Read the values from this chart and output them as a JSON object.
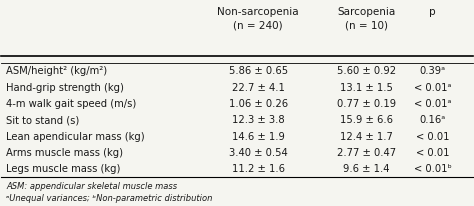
{
  "col_headers": [
    "Non-sarcopenia\n(n = 240)",
    "Sarcopenia\n(n = 10)",
    "p"
  ],
  "row_labels": [
    "ASM/height² (kg/m²)",
    "Hand-grip strength (kg)",
    "4-m walk gait speed (m/s)",
    "Sit to stand (s)",
    "Lean apendicular mass (kg)",
    "Arms muscle mass (kg)",
    "Legs muscle mass (kg)"
  ],
  "col1_vals": [
    "5.86 ± 0.65",
    "22.7 ± 4.1",
    "1.06 ± 0.26",
    "12.3 ± 3.8",
    "14.6 ± 1.9",
    "3.40 ± 0.54",
    "11.2 ± 1.6"
  ],
  "col2_vals": [
    "5.60 ± 0.92",
    "13.1 ± 1.5",
    "0.77 ± 0.19",
    "15.9 ± 6.6",
    "12.4 ± 1.7",
    "2.77 ± 0.47",
    "9.6 ± 1.4"
  ],
  "col3_vals": [
    "0.39ᵃ",
    "< 0.01ᵃ",
    "< 0.01ᵃ",
    "0.16ᵃ",
    "< 0.01",
    "< 0.01",
    "< 0.01ᵇ"
  ],
  "footnote1": "ASM: appendicular skeletal muscle mass",
  "footnote2": "ᵃUnequal variances; ᵇNon-parametric distribution",
  "bg_color": "#f5f5f0",
  "text_color": "#1a1a1a"
}
